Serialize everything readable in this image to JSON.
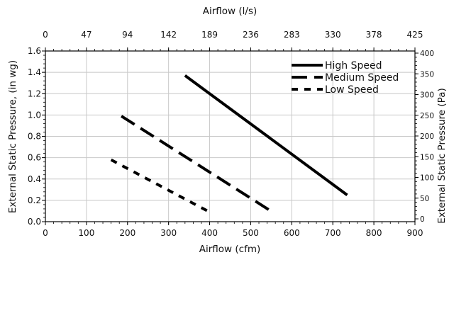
{
  "chart_data": {
    "type": "line",
    "xlabel_bottom": "Airflow (cfm)",
    "xlabel_top": "Airflow (l/s)",
    "ylabel_left": "External Static Pressure, (in wg)",
    "ylabel_right": "External Static Pressure (Pa)",
    "xlim": [
      0,
      900
    ],
    "ylim": [
      0,
      1.6
    ],
    "x_ticks": [
      "0",
      "100",
      "200",
      "300",
      "400",
      "500",
      "600",
      "700",
      "800",
      "900"
    ],
    "y_ticks": [
      "0.0",
      "0.2",
      "0.4",
      "0.6",
      "0.8",
      "1.0",
      "1.2",
      "1.4",
      "1.6"
    ],
    "top_ticks": [
      "0",
      "47",
      "94",
      "142",
      "189",
      "236",
      "283",
      "330",
      "378",
      "425"
    ],
    "right_ticks": [
      "0",
      "50",
      "100",
      "150",
      "200",
      "250",
      "300",
      "350",
      "400"
    ],
    "grid": true,
    "legend_position": "top-right",
    "series": [
      {
        "name": "High Speed",
        "dash": "solid",
        "x": [
          340,
          735
        ],
        "y": [
          1.37,
          0.25
        ]
      },
      {
        "name": "Medium Speed",
        "dash": "long-dash",
        "x": [
          185,
          545
        ],
        "y": [
          0.99,
          0.11
        ]
      },
      {
        "name": "Low Speed",
        "dash": "short-dash",
        "x": [
          160,
          400
        ],
        "y": [
          0.58,
          0.09
        ]
      }
    ]
  }
}
